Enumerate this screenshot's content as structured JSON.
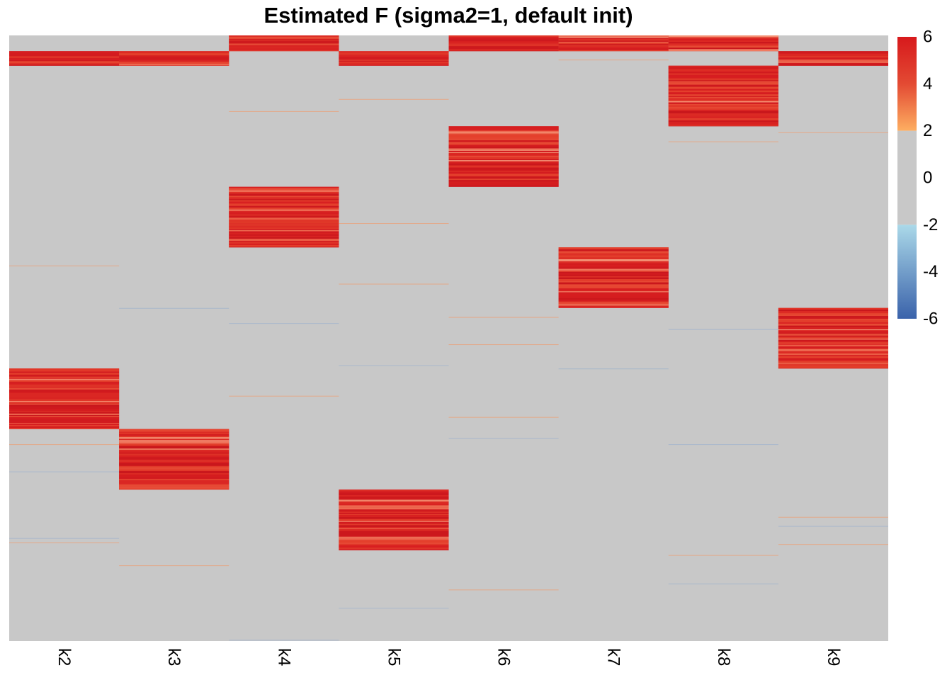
{
  "chart_data": {
    "type": "heatmap",
    "title": "Estimated F (sigma2=1, default init)",
    "columns": [
      "k2",
      "k3",
      "k4",
      "k5",
      "k6",
      "k7",
      "k8",
      "k9"
    ],
    "n_rows": 100,
    "blocks": [
      {
        "column": "k2",
        "row_start": 55,
        "row_end": 65,
        "level": 5.3
      },
      {
        "column": "k3",
        "row_start": 65,
        "row_end": 75,
        "level": 5.3
      },
      {
        "column": "k4",
        "row_start": 25,
        "row_end": 35,
        "level": 5.5
      },
      {
        "column": "k5",
        "row_start": 75,
        "row_end": 85,
        "level": 5.5
      },
      {
        "column": "k6",
        "row_start": 15,
        "row_end": 25,
        "level": 5.4
      },
      {
        "column": "k7",
        "row_start": 35,
        "row_end": 45,
        "level": 5.1
      },
      {
        "column": "k8",
        "row_start": 5,
        "row_end": 15,
        "level": 5.6
      },
      {
        "column": "k9",
        "row_start": 45,
        "row_end": 55,
        "level": 5.4
      }
    ],
    "top_band": [
      {
        "column": "k2",
        "row_start": 2.6,
        "row_end": 5,
        "level": 5.3
      },
      {
        "column": "k3",
        "row_start": 2.6,
        "row_end": 5,
        "level": 4.8
      },
      {
        "column": "k4",
        "row_start": 0,
        "row_end": 2.6,
        "level": 5.3
      },
      {
        "column": "k5",
        "row_start": 2.6,
        "row_end": 5,
        "level": 5.2
      },
      {
        "column": "k6",
        "row_start": 0,
        "row_end": 2.6,
        "level": 5.4
      },
      {
        "column": "k7",
        "row_start": 0,
        "row_end": 2.6,
        "level": 4.6
      },
      {
        "column": "k8",
        "row_start": 0,
        "row_end": 2.6,
        "level": 5.3
      },
      {
        "column": "k9",
        "row_start": 2.6,
        "row_end": 5,
        "level": 5.0
      }
    ],
    "color_scale": {
      "min": -6,
      "max": 6,
      "ticks": [
        "6",
        "4",
        "2",
        "0",
        "-2",
        "-4",
        "-6"
      ],
      "tick_values": [
        6,
        4,
        2,
        0,
        -2,
        -4,
        -6
      ],
      "colors": {
        "neutral": "#c8c8c8",
        "high": "#d7191c",
        "mid_high": "#e34a33",
        "low_high": "#fdae61",
        "low_neg": "#abd9e9",
        "high_neg": "#3a62aa"
      }
    },
    "grid": false,
    "legend": "right"
  }
}
